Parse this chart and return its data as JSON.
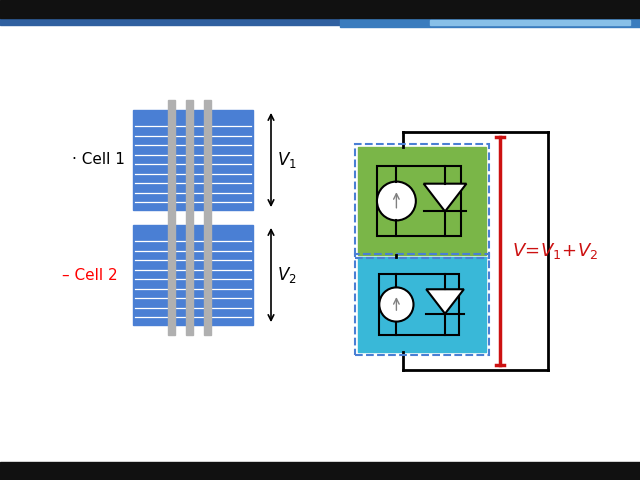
{
  "bg_color": "#ffffff",
  "cell_color": "#4a7fd4",
  "gray_bar_color": "#b0b0b0",
  "green_box_color": "#7ab648",
  "cyan_box_color": "#39b8d8",
  "dashed_color": "#4a7fd4",
  "annotation_color": "#cc1111",
  "top_bar_color": "#111111",
  "header_blue1": "#3a6eb0",
  "header_blue2": "#7ab8e8",
  "cell1_label": "· Cell 1",
  "cell2_label": "– Cell 2",
  "v1_label": "$V_1$",
  "v2_label": "$V_2$"
}
